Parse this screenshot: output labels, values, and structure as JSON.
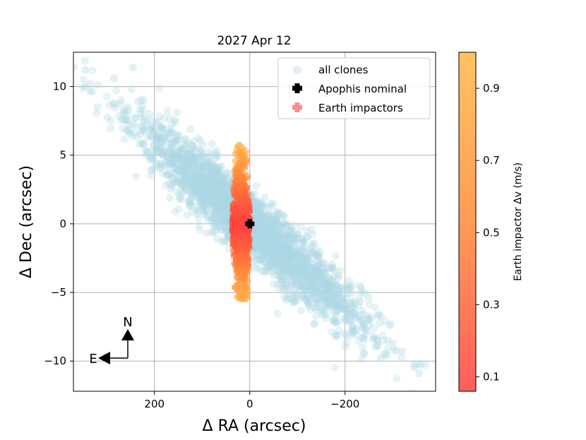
{
  "chart_data": {
    "type": "scatter",
    "title": "2027 Apr 12",
    "xlabel": "Δ RA (arcsec)",
    "ylabel": "Δ Dec (arcsec)",
    "xlim": [
      370,
      -390
    ],
    "ylim": [
      -12.2,
      12.5
    ],
    "x_ticks": [
      200,
      0,
      -200
    ],
    "x_tick_labels": [
      "200",
      "0",
      "−200"
    ],
    "y_ticks": [
      10,
      5,
      0,
      -5,
      -10
    ],
    "y_tick_labels": [
      "10",
      "5",
      "0",
      "−5",
      "−10"
    ],
    "grid": true,
    "legend": {
      "position": "top-right",
      "entries": [
        "all clones",
        "Apophis nominal",
        "Earth impactors"
      ]
    },
    "colorbar": {
      "label": "Earth impactor Δv (m/s)",
      "range": [
        0.06,
        1.0
      ],
      "ticks": [
        0.9,
        0.7,
        0.5,
        0.3,
        0.1
      ],
      "tick_labels": [
        "0.9",
        "0.7",
        "0.5",
        "0.3",
        "0.1"
      ],
      "colormap": [
        "#ff4040",
        "#ff8a38",
        "#ffb846"
      ]
    },
    "series": [
      {
        "name": "all clones",
        "marker": "circle",
        "color": "#add8e6",
        "distribution": {
          "count": 2600,
          "slope_arcsec_per_arcsec": 0.0295,
          "along_sigma_arcsec": 115,
          "across_sigma_dec": 1.25,
          "outliers": [
            {
              "x": 350,
              "y": 9.9
            },
            {
              "x": 345,
              "y": 11.2
            },
            {
              "x": 335,
              "y": 10.2
            },
            {
              "x": 285,
              "y": 10.6
            },
            {
              "x": 245,
              "y": 11.4
            },
            {
              "x": -345,
              "y": -10.3
            },
            {
              "x": -355,
              "y": -10.9
            },
            {
              "x": -300,
              "y": -8.7
            },
            {
              "x": -320,
              "y": -9.3
            },
            {
              "x": -275,
              "y": -9.8
            }
          ]
        }
      },
      {
        "name": "Apophis nominal",
        "marker": "plus",
        "color": "#000000",
        "points": [
          {
            "x": 0,
            "y": 0
          }
        ]
      },
      {
        "name": "Earth impactors",
        "marker": "plus",
        "color_by": "Δv (m/s)",
        "distribution": {
          "count": 420,
          "x_center": 18,
          "x_halfwidth": 17,
          "y_range": [
            -5.4,
            5.7
          ],
          "dv_model": "0.08 + 0.85 * (|Δdec| / 5.7)^1.3"
        }
      }
    ]
  },
  "compass": {
    "north_label": "N",
    "east_label": "E"
  }
}
